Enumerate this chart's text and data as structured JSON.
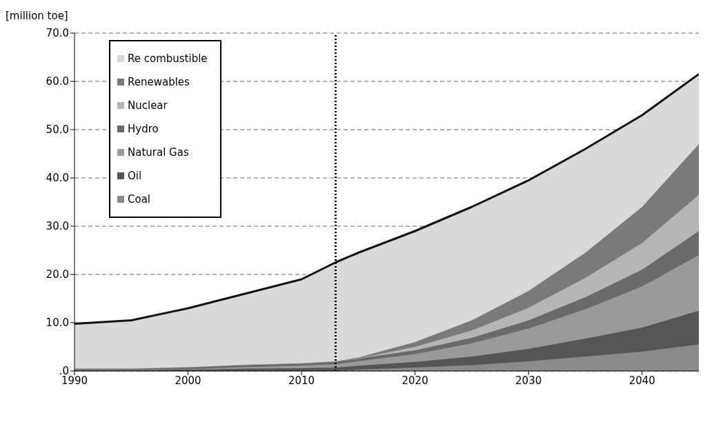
{
  "chart_data": {
    "type": "area",
    "stacked": true,
    "ylabel": "[million toe]",
    "x": [
      1990,
      1995,
      2000,
      2005,
      2010,
      2013,
      2015,
      2020,
      2025,
      2030,
      2035,
      2040,
      2045
    ],
    "series": [
      {
        "name": "Coal",
        "color": "#8a8a8a",
        "values": [
          0,
          0,
          0,
          0,
          0,
          0,
          0.3,
          0.7,
          1.2,
          2,
          3,
          4,
          5.5
        ]
      },
      {
        "name": "Oil",
        "color": "#555555",
        "values": [
          0.2,
          0.2,
          0.3,
          0.5,
          0.6,
          0.7,
          0.8,
          1.2,
          1.8,
          2.6,
          3.7,
          5,
          7
        ]
      },
      {
        "name": "Natural Gas",
        "color": "#9a9a9a",
        "values": [
          0,
          0,
          0.1,
          0.3,
          0.5,
          0.7,
          0.9,
          1.6,
          2.7,
          4.2,
          6.1,
          8.5,
          11.5
        ]
      },
      {
        "name": "Hydro",
        "color": "#6a6a6a",
        "values": [
          0.3,
          0.3,
          0.4,
          0.5,
          0.5,
          0.6,
          0.6,
          0.8,
          1.2,
          1.7,
          2.5,
          3.5,
          5
        ]
      },
      {
        "name": "Nuclear",
        "color": "#b5b5b5",
        "values": [
          0,
          0,
          0,
          0,
          0,
          0,
          0,
          0.7,
          1.5,
          2.6,
          4,
          5.5,
          7.5
        ]
      },
      {
        "name": "Renewables",
        "color": "#7a7a7a",
        "values": [
          0,
          0,
          0,
          0,
          0,
          0,
          0.2,
          1,
          2.1,
          3.5,
          5.2,
          7.5,
          10.5
        ]
      },
      {
        "name": "Re combustible",
        "color": "#d9d9d9",
        "values": [
          9.3,
          10,
          12.2,
          14.7,
          17.4,
          20.5,
          21.7,
          23,
          23.5,
          22.9,
          21.5,
          19,
          14.5
        ]
      }
    ],
    "xlim": [
      1990,
      2045
    ],
    "xticks": [
      1990,
      2000,
      2010,
      2020,
      2030,
      2040
    ],
    "ylim": [
      0,
      70
    ],
    "yticks": [
      {
        "value": 0,
        "label": ".0"
      },
      {
        "value": 10,
        "label": "10.0"
      },
      {
        "value": 20,
        "label": "20.0"
      },
      {
        "value": 30,
        "label": "30.0"
      },
      {
        "value": 40,
        "label": "40.0"
      },
      {
        "value": 50,
        "label": "50.0"
      },
      {
        "value": 60,
        "label": "60.0"
      },
      {
        "value": 70,
        "label": "70.0"
      }
    ],
    "grid": "y",
    "legend": "top left",
    "ref_lines": [
      {
        "axis": "x",
        "value": 2013,
        "line_style": "dotted",
        "color": "#000000"
      }
    ]
  }
}
